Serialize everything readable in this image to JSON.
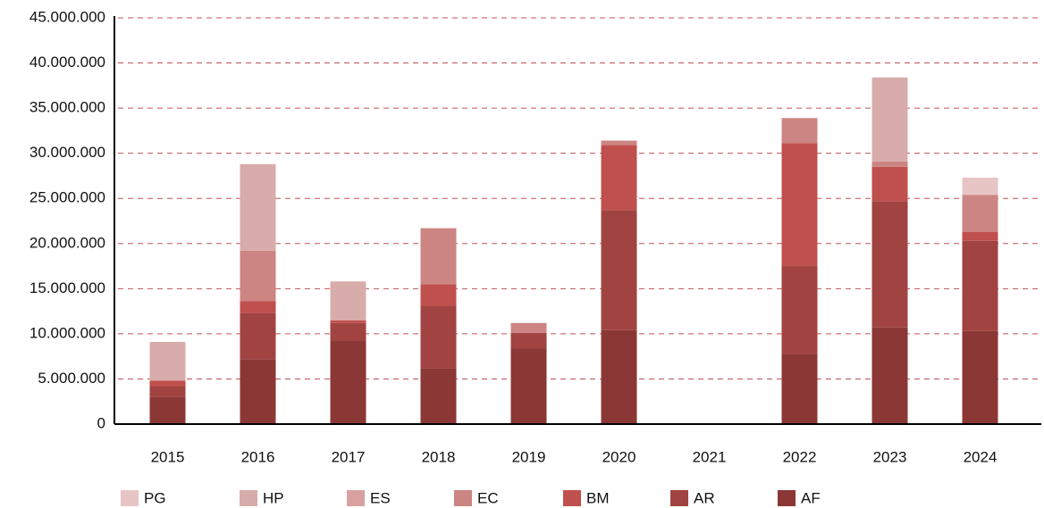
{
  "chart_data": {
    "type": "stacked_bar",
    "categories": [
      "2015",
      "2016",
      "2017",
      "2018",
      "2019",
      "2020",
      "2021",
      "2022",
      "2023",
      "2024"
    ],
    "series": [
      {
        "name": "AF",
        "color": "#8b3736",
        "values": [
          3000000.0,
          7200000.0,
          9200000.0,
          6200000.0,
          8400000.0,
          10400000.0,
          0,
          7800000.0,
          10700000.0,
          10300000.0
        ]
      },
      {
        "name": "AR",
        "color": "#a14341",
        "values": [
          1200000.0,
          5100000.0,
          2000000.0,
          6900000.0,
          1700000.0,
          13300000.0,
          0,
          9700000.0,
          14000000.0,
          10000000.0
        ]
      },
      {
        "name": "BM",
        "color": "#c0504d",
        "values": [
          600000.0,
          1300000.0,
          300000.0,
          2400000.0,
          0,
          7200000.0,
          0,
          13600000.0,
          3800000.0,
          1000000.0
        ]
      },
      {
        "name": "EC",
        "color": "#cc8582",
        "values": [
          0,
          5600000.0,
          0,
          6200000.0,
          1100000.0,
          500000.0,
          0,
          2800000.0,
          600000.0,
          4100000.0
        ]
      },
      {
        "name": "ES",
        "color": "#d9a2a0",
        "values": [
          0,
          0,
          0,
          0,
          0,
          0,
          0,
          0,
          0,
          0
        ]
      },
      {
        "name": "HP",
        "color": "#d8acaa",
        "values": [
          4300000.0,
          9600000.0,
          4300000.0,
          0,
          0,
          0,
          0,
          0,
          9300000.0,
          0
        ]
      },
      {
        "name": "PG",
        "color": "#e6c5c4",
        "values": [
          0,
          0,
          0,
          0,
          0,
          0,
          0,
          0,
          0,
          1900000.0
        ]
      }
    ],
    "legend_order": [
      "PG",
      "HP",
      "ES",
      "EC",
      "BM",
      "AR",
      "AF"
    ],
    "ylim": [
      0,
      45000000
    ],
    "yticks": [
      0,
      {
        "value": 5000000,
        "label": "5.000.000"
      },
      {
        "value": 10000000,
        "label": "10.000.000"
      },
      {
        "value": 15000000,
        "label": "15.000.000"
      },
      {
        "value": 20000000,
        "label": "20.000.000"
      },
      {
        "value": 25000000,
        "label": "25.000.000"
      },
      {
        "value": 30000000,
        "label": "30.000.000"
      },
      {
        "value": 35000000,
        "label": "35.000.000"
      },
      {
        "value": 40000000,
        "label": "40.000.000"
      },
      {
        "value": 45000000,
        "label": "45.000.000"
      }
    ],
    "grid": true
  }
}
